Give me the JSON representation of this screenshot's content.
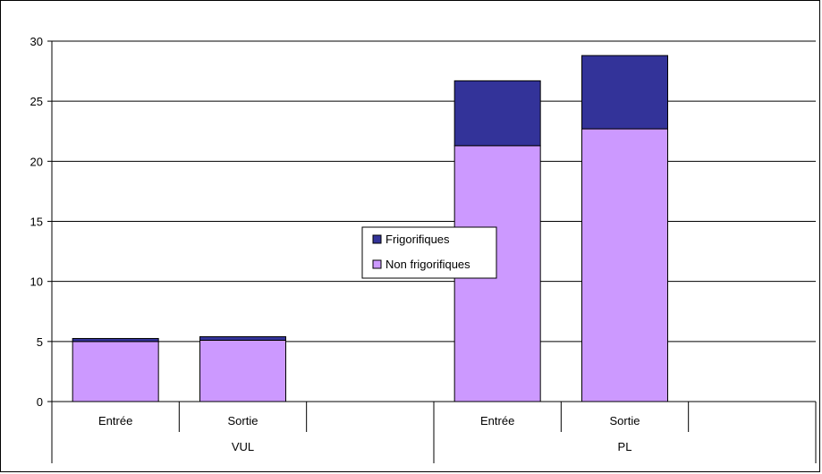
{
  "chart_data": {
    "type": "bar",
    "stacked": true,
    "groups": [
      {
        "label": "VUL",
        "categories": [
          "Entrée",
          "Sortie"
        ]
      },
      {
        "label": "PL",
        "categories": [
          "Entrée",
          "Sortie"
        ]
      }
    ],
    "categories": [
      "VUL Entrée",
      "VUL Sortie",
      "PL Entrée",
      "PL Sortie"
    ],
    "series": [
      {
        "name": "Non frigorifiques",
        "color": "#cc99ff",
        "values": [
          5.0,
          5.1,
          21.3,
          22.7
        ]
      },
      {
        "name": "Frigorifiques",
        "color": "#333399",
        "values": [
          0.25,
          0.3,
          5.4,
          6.1
        ]
      }
    ],
    "ylim": [
      0,
      30
    ],
    "yticks": [
      0,
      5,
      10,
      15,
      20,
      25,
      30
    ],
    "grid": true,
    "legend_position": "center",
    "title": "",
    "xlabel": "",
    "ylabel": ""
  }
}
